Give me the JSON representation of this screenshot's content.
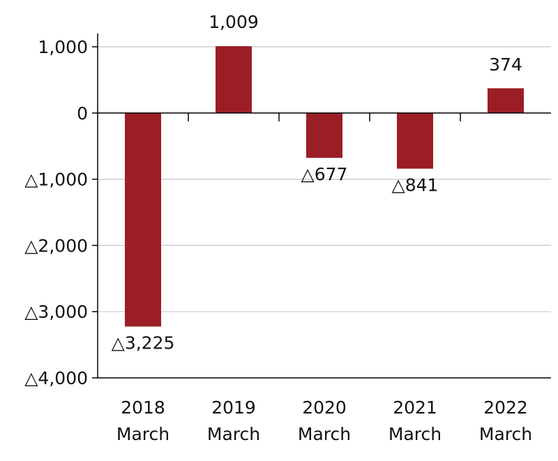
{
  "chart_data": {
    "type": "bar",
    "categories": [
      [
        "2018",
        "March"
      ],
      [
        "2019",
        "March"
      ],
      [
        "2020",
        "March"
      ],
      [
        "2021",
        "March"
      ],
      [
        "2022",
        "March"
      ]
    ],
    "values": [
      -3225,
      1009,
      -677,
      -841,
      374
    ],
    "data_labels": [
      "△3,225",
      "1,009",
      "△677",
      "△841",
      "374"
    ],
    "title": "",
    "xlabel": "",
    "ylabel": "",
    "ylim": [
      -4000,
      1000
    ],
    "yticks": [
      1000,
      0,
      -1000,
      -2000,
      -3000,
      -4000
    ],
    "ytick_labels": [
      "1,000",
      "0",
      "△1,000",
      "△2,000",
      "△3,000",
      "△4,000"
    ],
    "grid": true,
    "legend": "none",
    "bar_color": "#9b1e26",
    "grid_color": "#c8c8c8",
    "axis_color": "#000000"
  }
}
